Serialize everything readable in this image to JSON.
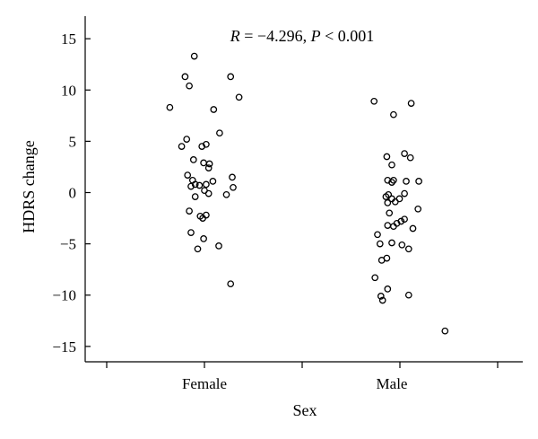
{
  "chart_data": {
    "type": "scatter",
    "title": "",
    "xlabel": "Sex",
    "ylabel": "HDRS change",
    "categories": [
      "Female",
      "Male"
    ],
    "ylim": [
      -16.5,
      17.2
    ],
    "yticks": [
      -15,
      -10,
      -5,
      0,
      5,
      10,
      15
    ],
    "annotation": {
      "italic_r": "R",
      "r_text": " = −4.296, ",
      "italic_p": "P",
      "p_text": " < 0.001"
    },
    "grid": false,
    "series": [
      {
        "category": "Female",
        "points": [
          {
            "jitter": -0.41,
            "y": 8.3
          },
          {
            "jitter": -0.23,
            "y": 11.3
          },
          {
            "jitter": -0.18,
            "y": 10.4
          },
          {
            "jitter": -0.12,
            "y": 13.3
          },
          {
            "jitter": 0.31,
            "y": 11.3
          },
          {
            "jitter": 0.41,
            "y": 9.3
          },
          {
            "jitter": 0.11,
            "y": 8.1
          },
          {
            "jitter": -0.27,
            "y": 4.5
          },
          {
            "jitter": -0.21,
            "y": 5.2
          },
          {
            "jitter": -0.03,
            "y": 4.5
          },
          {
            "jitter": 0.02,
            "y": 4.7
          },
          {
            "jitter": 0.18,
            "y": 5.8
          },
          {
            "jitter": -0.13,
            "y": 3.2
          },
          {
            "jitter": -0.01,
            "y": 2.9
          },
          {
            "jitter": 0.06,
            "y": 2.8
          },
          {
            "jitter": 0.05,
            "y": 2.4
          },
          {
            "jitter": -0.2,
            "y": 1.7
          },
          {
            "jitter": -0.14,
            "y": 1.2
          },
          {
            "jitter": 0.1,
            "y": 1.1
          },
          {
            "jitter": 0.33,
            "y": 1.5
          },
          {
            "jitter": -0.16,
            "y": 0.6
          },
          {
            "jitter": -0.11,
            "y": 0.8
          },
          {
            "jitter": -0.06,
            "y": 0.7
          },
          {
            "jitter": 0.02,
            "y": 0.8
          },
          {
            "jitter": 0.34,
            "y": 0.5
          },
          {
            "jitter": -0.11,
            "y": -0.4
          },
          {
            "jitter": 0.0,
            "y": 0.2
          },
          {
            "jitter": 0.05,
            "y": -0.1
          },
          {
            "jitter": 0.26,
            "y": -0.2
          },
          {
            "jitter": -0.18,
            "y": -1.8
          },
          {
            "jitter": -0.05,
            "y": -2.3
          },
          {
            "jitter": -0.02,
            "y": -2.5
          },
          {
            "jitter": 0.02,
            "y": -2.2
          },
          {
            "jitter": -0.16,
            "y": -3.9
          },
          {
            "jitter": -0.01,
            "y": -4.5
          },
          {
            "jitter": -0.08,
            "y": -5.5
          },
          {
            "jitter": 0.17,
            "y": -5.2
          },
          {
            "jitter": 0.31,
            "y": -8.9
          }
        ]
      },
      {
        "category": "Male",
        "points": [
          {
            "jitter": -0.21,
            "y": 8.9
          },
          {
            "jitter": 0.23,
            "y": 8.7
          },
          {
            "jitter": 0.02,
            "y": 7.6
          },
          {
            "jitter": -0.06,
            "y": 3.5
          },
          {
            "jitter": 0.15,
            "y": 3.8
          },
          {
            "jitter": 0.22,
            "y": 3.4
          },
          {
            "jitter": 0.0,
            "y": 2.7
          },
          {
            "jitter": -0.05,
            "y": 1.2
          },
          {
            "jitter": 0.0,
            "y": 1.0
          },
          {
            "jitter": 0.02,
            "y": 1.2
          },
          {
            "jitter": 0.17,
            "y": 1.1
          },
          {
            "jitter": 0.32,
            "y": 1.1
          },
          {
            "jitter": -0.04,
            "y": -0.2
          },
          {
            "jitter": 0.0,
            "y": -0.6
          },
          {
            "jitter": 0.04,
            "y": -0.9
          },
          {
            "jitter": 0.09,
            "y": -0.6
          },
          {
            "jitter": 0.15,
            "y": -0.1
          },
          {
            "jitter": -0.07,
            "y": -0.4
          },
          {
            "jitter": -0.05,
            "y": -1.0
          },
          {
            "jitter": 0.31,
            "y": -1.6
          },
          {
            "jitter": -0.03,
            "y": -2.0
          },
          {
            "jitter": -0.05,
            "y": -3.2
          },
          {
            "jitter": 0.02,
            "y": -3.3
          },
          {
            "jitter": 0.06,
            "y": -3.0
          },
          {
            "jitter": 0.11,
            "y": -2.8
          },
          {
            "jitter": 0.15,
            "y": -2.6
          },
          {
            "jitter": 0.25,
            "y": -3.5
          },
          {
            "jitter": -0.17,
            "y": -4.1
          },
          {
            "jitter": -0.14,
            "y": -5.0
          },
          {
            "jitter": 0.0,
            "y": -4.9
          },
          {
            "jitter": 0.12,
            "y": -5.1
          },
          {
            "jitter": 0.2,
            "y": -5.5
          },
          {
            "jitter": -0.12,
            "y": -6.6
          },
          {
            "jitter": -0.06,
            "y": -6.4
          },
          {
            "jitter": -0.2,
            "y": -8.3
          },
          {
            "jitter": -0.13,
            "y": -10.1
          },
          {
            "jitter": -0.11,
            "y": -10.5
          },
          {
            "jitter": -0.05,
            "y": -9.4
          },
          {
            "jitter": 0.2,
            "y": -10.0
          },
          {
            "jitter": 0.63,
            "y": -13.5
          }
        ]
      }
    ]
  }
}
